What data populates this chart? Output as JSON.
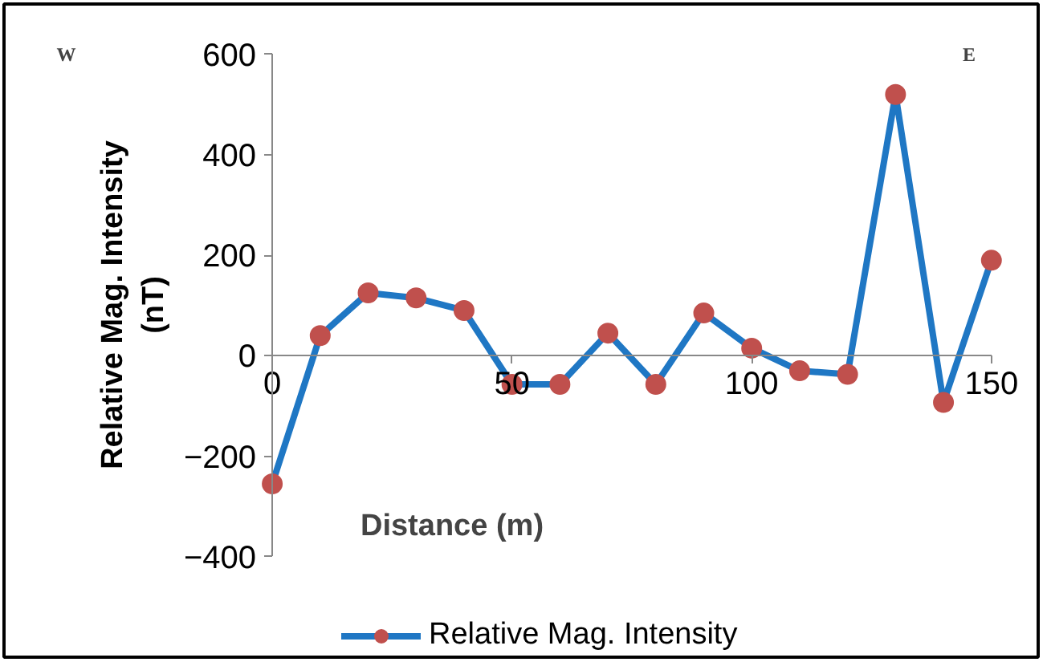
{
  "chart_data": {
    "type": "line",
    "xlabel": "Distance (m)",
    "ylabel": "Relative Mag. Intensity (nT)",
    "x": [
      0,
      10,
      20,
      30,
      40,
      50,
      60,
      70,
      80,
      90,
      100,
      110,
      120,
      130,
      140,
      150
    ],
    "series": [
      {
        "name": "Relative Mag. Intensity",
        "color": "#1f77c4",
        "colors": [
          "#c0504d",
          "#c0504d",
          "#c0504d",
          "#c0504d",
          "#c0504d",
          "#c0504d",
          "#c0504d",
          "#c0504d",
          "#c0504d",
          "#c0504d",
          "#c0504d",
          "#c0504d",
          "#c0504d",
          "#c0504d",
          "#c0504d",
          "#c0504d"
        ],
        "values": [
          -255,
          40,
          125,
          115,
          90,
          -57,
          -57,
          45,
          -57,
          85,
          15,
          -30,
          -37,
          520,
          -93,
          190
        ]
      }
    ],
    "xlim": [
      0,
      150
    ],
    "xticks": [
      0,
      50,
      100,
      150
    ],
    "ylim": [
      -400,
      600
    ],
    "yticks": [
      -400,
      -200,
      0,
      200,
      400,
      600
    ],
    "annotations": [
      "W",
      "E"
    ],
    "legend": "bottom",
    "marker": "circle",
    "line_style": "solid",
    "grid": false
  }
}
